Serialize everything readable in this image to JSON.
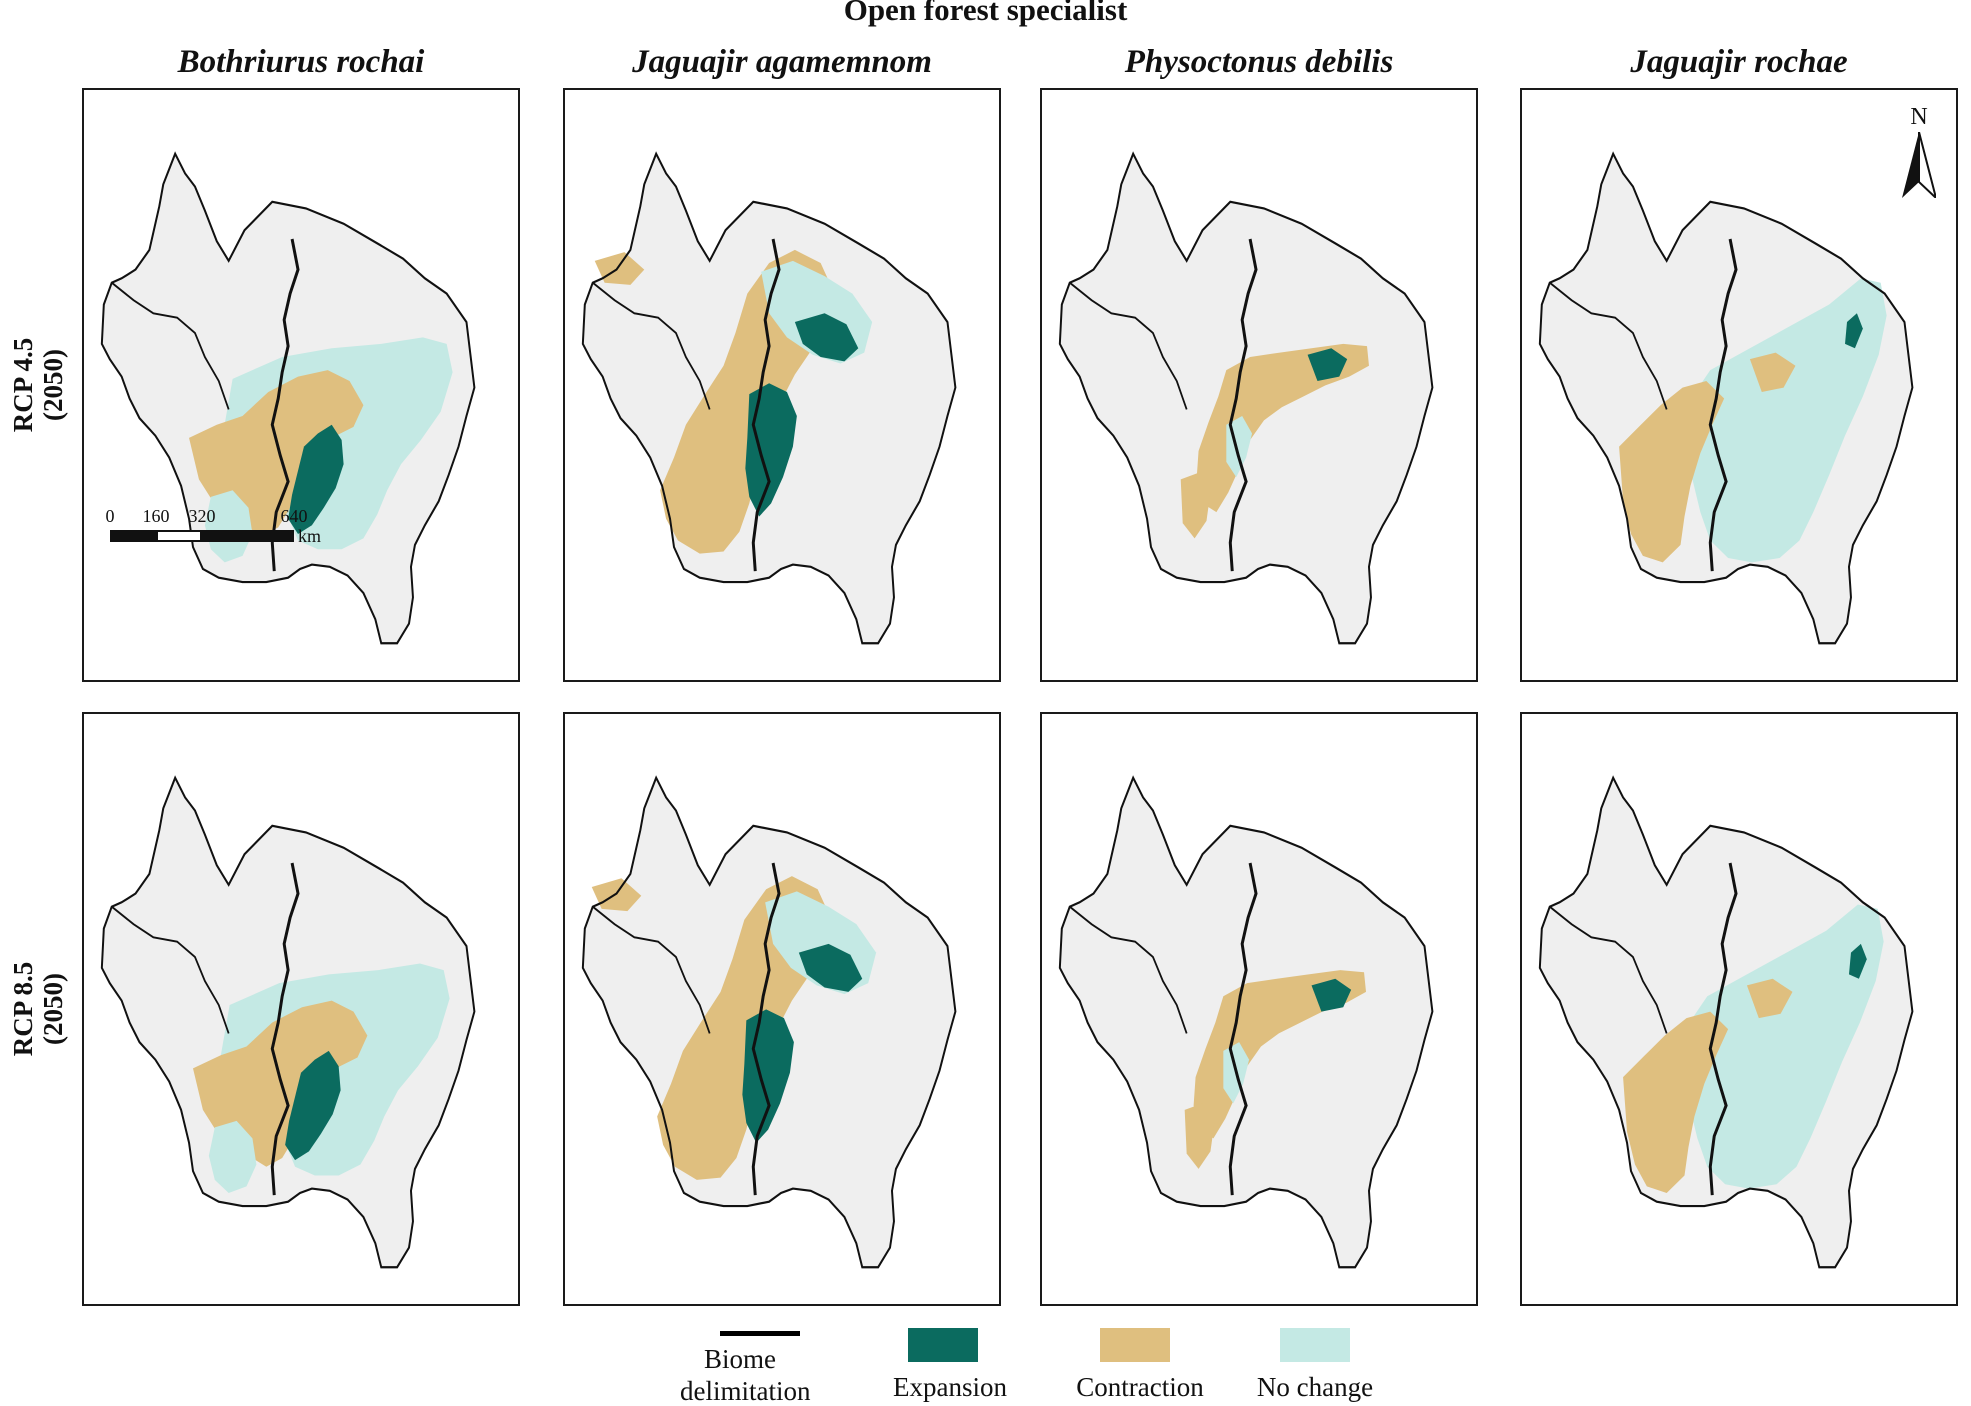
{
  "figure": {
    "title": "Open forest specialist"
  },
  "columns": [
    "Bothriurus rochai",
    "Jaguajir agamemnom",
    "Physoctonus debilis",
    "Jaguajir rochae"
  ],
  "rows": [
    {
      "scenario": "RCP 4.5",
      "period": "(2050)"
    },
    {
      "scenario": "RCP 8.5",
      "period": "(2050)"
    }
  ],
  "scale_bar": {
    "ticks": [
      "0",
      "160",
      "320",
      "640"
    ],
    "unit": "km"
  },
  "north_arrow": {
    "label": "N",
    "icon": "north-arrow-icon"
  },
  "legend": {
    "items": [
      {
        "label_line1": "Biome",
        "label_line2": "delimitation",
        "symbol": "line",
        "color": "#000000"
      },
      {
        "label": "Expansion",
        "symbol": "swatch",
        "color": "#0b6b5f"
      },
      {
        "label": "Contraction",
        "symbol": "swatch",
        "color": "#dfbf7f"
      },
      {
        "label": "No change",
        "symbol": "swatch",
        "color": "#c4e9e4"
      }
    ]
  },
  "colors": {
    "background_land": "#efefef",
    "outline": "#111111",
    "expansion": "#0b6b5f",
    "contraction": "#dfbf7f",
    "no_change": "#c4e9e4"
  }
}
